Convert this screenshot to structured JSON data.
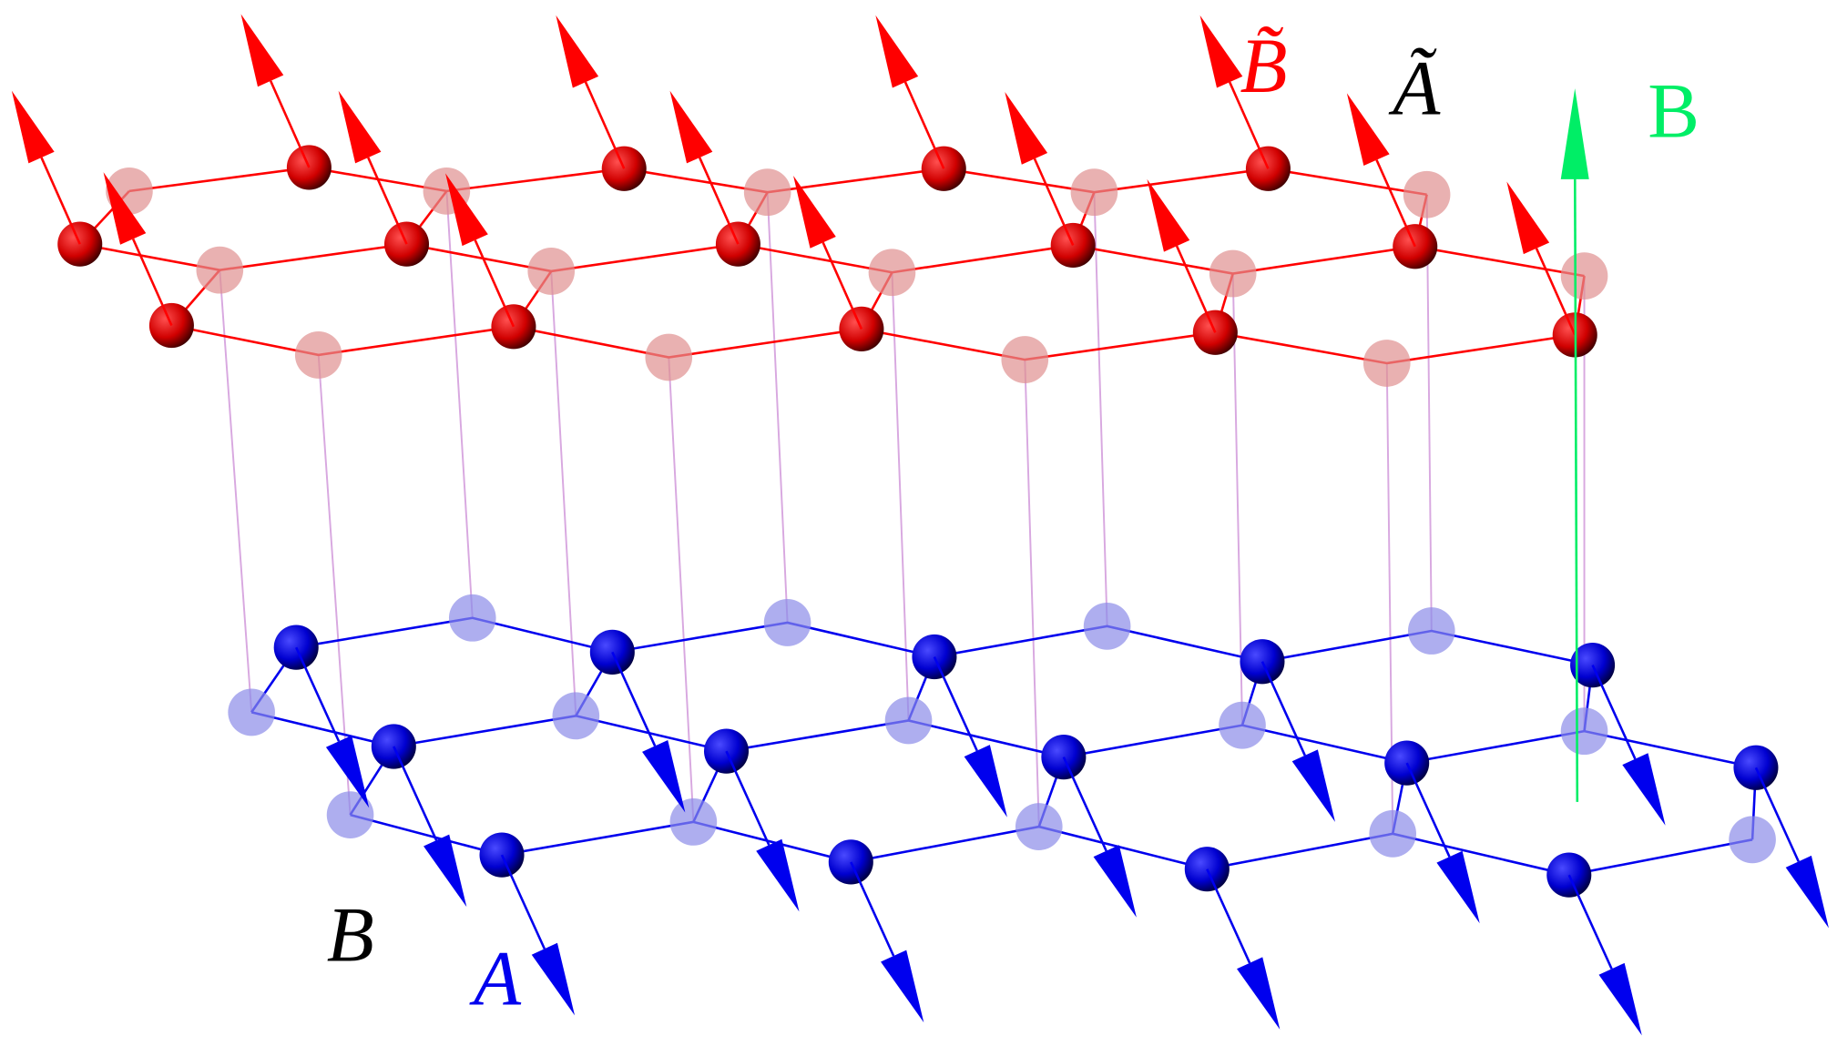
{
  "labels": {
    "b_tilde": "B̃",
    "a_tilde": "Ã",
    "field_b": "B",
    "sublattice_b": "B",
    "sublattice_a": "A"
  },
  "colors": {
    "top_layer": "#ff0000",
    "bottom_layer": "#0000ee",
    "interlayer_bond": "#d8a8e0",
    "field_arrow": "#00ee66",
    "label_black": "#000000"
  },
  "icons": {
    "spin_up": "red-arrow-icon",
    "spin_down": "blue-arrow-icon",
    "field": "green-arrow-icon"
  }
}
